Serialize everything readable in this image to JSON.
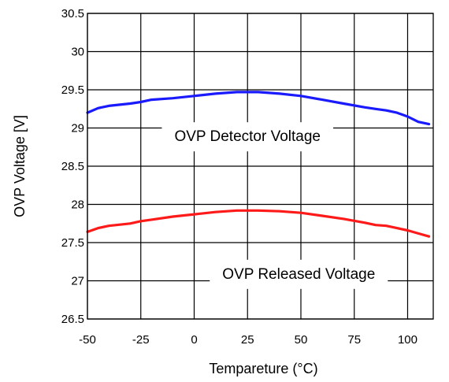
{
  "chart_data": {
    "type": "line",
    "xlabel": "Tempareture (°C)",
    "ylabel": "OVP Voltage [V]",
    "xlim": [
      -50,
      112
    ],
    "ylim": [
      26.5,
      30.5
    ],
    "xticks": [
      -50,
      -25,
      0,
      25,
      50,
      75,
      100
    ],
    "yticks": [
      26.5,
      27,
      27.5,
      28,
      28.5,
      29,
      29.5,
      30,
      30.5
    ],
    "xtick_labels": [
      "-50",
      "-25",
      "0",
      "25",
      "50",
      "75",
      "100"
    ],
    "ytick_labels": [
      "26.5",
      "27",
      "27.5",
      "28",
      "28.5",
      "29",
      "29.5",
      "30",
      "30.5"
    ],
    "grid": true,
    "series": [
      {
        "color": "#1a1aff",
        "x": [
          -50,
          -45,
          -40,
          -30,
          -25,
          -20,
          -10,
          0,
          10,
          20,
          25,
          30,
          40,
          50,
          60,
          70,
          80,
          85,
          90,
          95,
          100,
          105,
          110
        ],
        "y": [
          29.2,
          29.26,
          29.29,
          29.32,
          29.34,
          29.37,
          29.39,
          29.42,
          29.45,
          29.47,
          29.47,
          29.47,
          29.45,
          29.42,
          29.37,
          29.32,
          29.27,
          29.25,
          29.23,
          29.2,
          29.15,
          29.08,
          29.05
        ]
      },
      {
        "color": "#ff1a1a",
        "x": [
          -50,
          -45,
          -40,
          -30,
          -25,
          -20,
          -10,
          0,
          10,
          20,
          25,
          30,
          40,
          50,
          60,
          70,
          80,
          85,
          90,
          95,
          100,
          105,
          110
        ],
        "y": [
          27.64,
          27.69,
          27.72,
          27.75,
          27.78,
          27.8,
          27.84,
          27.87,
          27.9,
          27.92,
          27.92,
          27.92,
          27.91,
          27.89,
          27.85,
          27.81,
          27.76,
          27.73,
          27.72,
          27.69,
          27.66,
          27.62,
          27.58
        ]
      }
    ],
    "annotations": [
      {
        "text": "OVP Detector Voltage",
        "x": 25,
        "y": 28.9
      },
      {
        "text": "OVP Released Voltage",
        "x": 49,
        "y": 27.1
      }
    ]
  }
}
